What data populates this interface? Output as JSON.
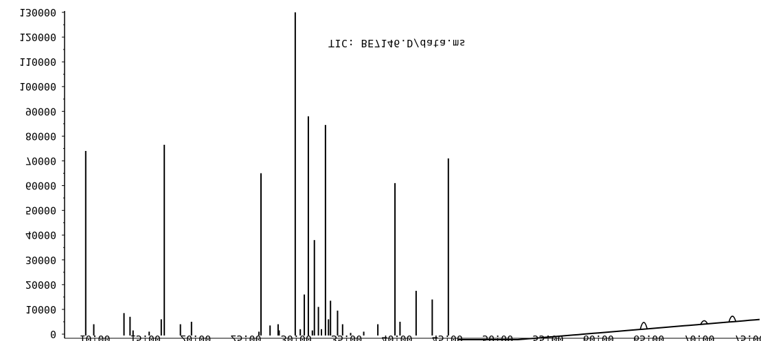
{
  "chart_data": {
    "type": "line",
    "title": "TIC: BE7146.D/data.ms",
    "xlabel": "",
    "ylabel": "",
    "xlim": [
      7,
      76
    ],
    "ylim": [
      0,
      130000
    ],
    "y_ticks": [
      0,
      10000,
      20000,
      30000,
      40000,
      50000,
      60000,
      70000,
      80000,
      90000,
      100000,
      110000,
      120000,
      130000
    ],
    "x_ticks": [
      10,
      15,
      20,
      25,
      30,
      35,
      40,
      45,
      50,
      55,
      60,
      65,
      70,
      75
    ],
    "y_tick_labels": [
      "0",
      "10000",
      "20000",
      "30000",
      "40000",
      "50000",
      "60000",
      "70000",
      "80000",
      "90000",
      "100000",
      "110000",
      "120000",
      "130000"
    ],
    "x_tick_labels": [
      "10.00",
      "15.00",
      "20.00",
      "25.00",
      "30.00",
      "35.00",
      "40.00",
      "45.00",
      "50.00",
      "55.00",
      "60.00",
      "65.00",
      "70.00",
      "75.00"
    ],
    "grid": false,
    "series": [
      {
        "peaks": [
          {
            "x": 9.1,
            "y": 74000
          },
          {
            "x": 9.9,
            "y": 4000
          },
          {
            "x": 12.9,
            "y": 8500
          },
          {
            "x": 13.5,
            "y": 7000
          },
          {
            "x": 13.8,
            "y": 1500
          },
          {
            "x": 15.4,
            "y": 1000
          },
          {
            "x": 16.6,
            "y": 6000
          },
          {
            "x": 16.9,
            "y": 76500
          },
          {
            "x": 18.5,
            "y": 4000
          },
          {
            "x": 19.6,
            "y": 5000
          },
          {
            "x": 26.3,
            "y": 1000
          },
          {
            "x": 26.5,
            "y": 65000
          },
          {
            "x": 27.4,
            "y": 3500
          },
          {
            "x": 28.2,
            "y": 4000
          },
          {
            "x": 28.3,
            "y": 1500
          },
          {
            "x": 29.9,
            "y": 130000
          },
          {
            "x": 30.4,
            "y": 2000
          },
          {
            "x": 30.8,
            "y": 16000
          },
          {
            "x": 31.2,
            "y": 88000
          },
          {
            "x": 31.6,
            "y": 1500
          },
          {
            "x": 31.8,
            "y": 38000
          },
          {
            "x": 32.2,
            "y": 11000
          },
          {
            "x": 32.5,
            "y": 2000
          },
          {
            "x": 32.9,
            "y": 84500
          },
          {
            "x": 33.2,
            "y": 6000
          },
          {
            "x": 33.4,
            "y": 13500
          },
          {
            "x": 34.1,
            "y": 9500
          },
          {
            "x": 34.6,
            "y": 4000
          },
          {
            "x": 35.4,
            "y": 500
          },
          {
            "x": 36.7,
            "y": 1000
          },
          {
            "x": 38.1,
            "y": 4000
          },
          {
            "x": 39.8,
            "y": 61000
          },
          {
            "x": 40.3,
            "y": 5000
          },
          {
            "x": 41.9,
            "y": 17500
          },
          {
            "x": 43.5,
            "y": 14000
          },
          {
            "x": 45.1,
            "y": 71000
          }
        ]
      }
    ]
  }
}
